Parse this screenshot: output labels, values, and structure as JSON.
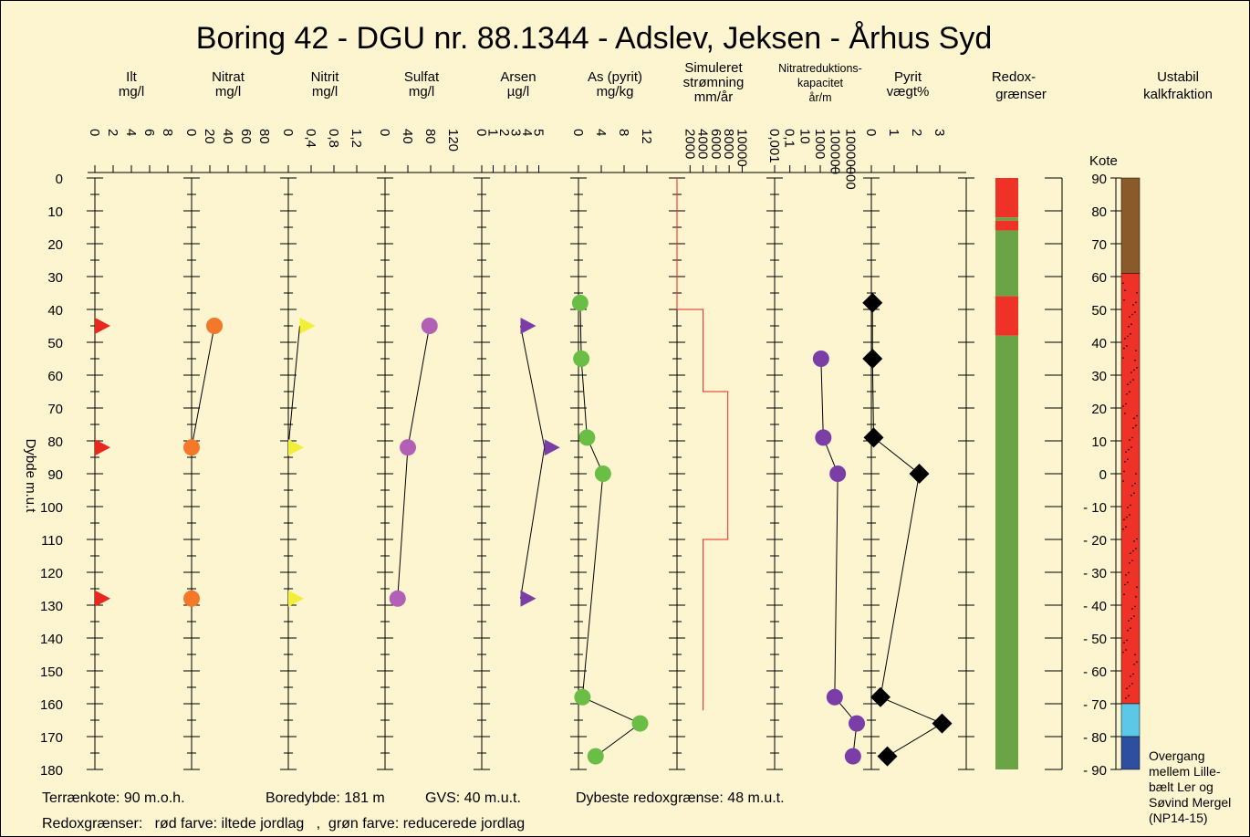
{
  "chart_data": {
    "type": "scatter",
    "title": "Boring 42 - DGU nr. 88.1344 - Adslev, Jeksen - Århus Syd",
    "ylabel": "Dybde m.u.t",
    "ylim": [
      0,
      180
    ],
    "depth_ticks": [
      "0",
      "10",
      "20",
      "30",
      "40",
      "50",
      "60",
      "70",
      "80",
      "90",
      "100",
      "110",
      "120",
      "130",
      "140",
      "150",
      "160",
      "170",
      "180"
    ],
    "panels": [
      {
        "id": "ilt",
        "label1": "Ilt",
        "label2": "mg/l",
        "ticks": [
          "0",
          "2",
          "4",
          "6",
          "8"
        ],
        "xlim": [
          0,
          10
        ],
        "marker": "triangle",
        "color": "#E8281E",
        "connect": false,
        "points": [
          [
            0,
            45
          ],
          [
            0,
            82
          ],
          [
            0,
            128
          ]
        ]
      },
      {
        "id": "nitrat",
        "label1": "Nitrat",
        "label2": "mg/l",
        "ticks": [
          "0",
          "20",
          "40",
          "60",
          "80"
        ],
        "xlim": [
          0,
          100
        ],
        "marker": "circle",
        "color": "#F4782A",
        "connect": true,
        "points": [
          [
            25,
            45
          ],
          [
            0,
            82
          ],
          [
            0,
            128
          ]
        ]
      },
      {
        "id": "nitrit",
        "label1": "Nitrit",
        "label2": "mg/l",
        "ticks": [
          "0",
          "0,4",
          "0,8",
          "1,2"
        ],
        "xlim": [
          0,
          1.6
        ],
        "marker": "triangle",
        "color": "#F2EE3A",
        "connect": true,
        "points": [
          [
            0.2,
            45
          ],
          [
            0,
            82
          ],
          [
            0,
            128
          ]
        ]
      },
      {
        "id": "sulfat",
        "label1": "Sulfat",
        "label2": "mg/l",
        "ticks": [
          "0",
          "40",
          "80",
          "120"
        ],
        "xlim": [
          0,
          160
        ],
        "marker": "circle",
        "color": "#B25FB6",
        "connect": true,
        "points": [
          [
            78,
            45
          ],
          [
            40,
            82
          ],
          [
            22,
            128
          ]
        ]
      },
      {
        "id": "arsen",
        "label1": "Arsen",
        "label2": "µg/l",
        "ticks": [
          "0",
          "1",
          "2",
          "3",
          "4",
          "5"
        ],
        "xlim": [
          0,
          8
        ],
        "marker": "triangle",
        "color": "#7A3EA6",
        "connect": true,
        "points": [
          [
            3.4,
            45
          ],
          [
            5.5,
            82
          ],
          [
            3.4,
            128
          ]
        ]
      },
      {
        "id": "aspyrit",
        "label1": "As (pyrit)",
        "label2": "mg/kg",
        "ticks": [
          "0",
          "4",
          "8",
          "12"
        ],
        "xlim": [
          0,
          16
        ],
        "marker": "circle",
        "color": "#6BBE45",
        "connect": true,
        "points": [
          [
            0.3,
            38
          ],
          [
            0.5,
            55
          ],
          [
            1.5,
            79
          ],
          [
            4.3,
            90
          ],
          [
            0.7,
            158
          ],
          [
            10.8,
            166
          ],
          [
            3,
            176
          ]
        ]
      },
      {
        "id": "stroemning",
        "label1": "Simuleret",
        "label2": "strømning",
        "label3": "mm/år",
        "ticks": [
          "2000",
          "4000",
          "6000",
          "8000",
          "10000"
        ],
        "xlim": [
          0,
          14000
        ],
        "marker": "none",
        "color": "#E8281E",
        "connect": true,
        "points": [
          [
            0,
            0
          ],
          [
            0,
            40
          ],
          [
            4000,
            40
          ],
          [
            4000,
            65
          ],
          [
            7800,
            65
          ],
          [
            7800,
            110
          ],
          [
            4000,
            110
          ],
          [
            4000,
            162
          ]
        ]
      },
      {
        "id": "nitratred",
        "label1": "Nitratreduktions-",
        "label2": "kapacitet",
        "label3": "år/m",
        "ticks": [
          "0,001",
          "0,1",
          "10",
          "1000",
          "100000",
          "10000000"
        ],
        "xlim": [
          -3,
          9
        ],
        "marker": "circle",
        "color": "#7A3EA6",
        "connect": true,
        "points": [
          [
            3.1,
            55
          ],
          [
            3.4,
            79
          ],
          [
            5.3,
            90
          ],
          [
            4.9,
            158
          ],
          [
            7.8,
            166
          ],
          [
            7.3,
            176
          ]
        ]
      },
      {
        "id": "pyrit",
        "label1": "Pyrit",
        "label2": "vægt%",
        "ticks": [
          "0",
          "1",
          "2",
          "3"
        ],
        "xlim": [
          0,
          4
        ],
        "marker": "diamond",
        "color": "#000000",
        "connect": true,
        "points": [
          [
            0.05,
            38
          ],
          [
            0.05,
            55
          ],
          [
            0.1,
            79
          ],
          [
            2.1,
            90
          ],
          [
            0.4,
            158
          ],
          [
            3.1,
            166
          ],
          [
            0.7,
            176
          ]
        ]
      }
    ],
    "redox": {
      "label1": "Redox-",
      "label2": "grænser",
      "segments": [
        {
          "from": 0,
          "to": 12,
          "color": "#EE3228"
        },
        {
          "from": 12,
          "to": 13,
          "color": "#6BA446"
        },
        {
          "from": 13,
          "to": 16,
          "color": "#EE3228"
        },
        {
          "from": 16,
          "to": 36,
          "color": "#6BA446"
        },
        {
          "from": 36,
          "to": 48,
          "color": "#EE3228"
        },
        {
          "from": 48,
          "to": 180,
          "color": "#6BA446"
        }
      ]
    },
    "kote": {
      "label": "Kote",
      "ticks": [
        "90",
        "80",
        "70",
        "60",
        "50",
        "40",
        "30",
        "20",
        "10",
        "0",
        "- 10",
        "- 20",
        "- 30",
        "- 40",
        "- 50",
        "- 60",
        "- 70",
        "- 80",
        "- 90"
      ],
      "range": [
        90,
        -90
      ],
      "header1": "Ustabil",
      "header2": "kalkfraktion",
      "lithology": [
        {
          "from": 90,
          "to": 61,
          "color": "#8B5A2B"
        },
        {
          "from": 61,
          "to": -70,
          "color": "#EE3228"
        },
        {
          "from": -70,
          "to": -80,
          "color": "#5BC8E8"
        },
        {
          "from": -80,
          "to": -90,
          "color": "#2E4FA0"
        }
      ],
      "note": [
        "Overgang",
        "mellem Lille-",
        "bælt Ler og",
        "Søvind Mergel",
        "(NP14-15)"
      ]
    },
    "footer": {
      "line1": [
        "Terrænkote: 90 m.o.h.",
        "Boredybde: 181 m",
        "GVS: 40 m.u.t.",
        "Dybeste redoxgrænse: 48 m.u.t."
      ],
      "line2": "Redoxgrænser:   rød farve: iltede jordlag   ,  grøn farve: reducerede jordlag"
    },
    "colors": {
      "background": "#FCF5D0",
      "red": "#E8281E",
      "green": "#6BA446"
    }
  }
}
